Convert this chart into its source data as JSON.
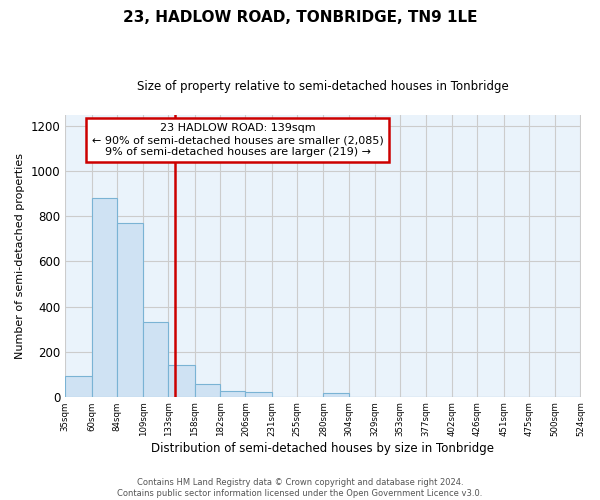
{
  "title": "23, HADLOW ROAD, TONBRIDGE, TN9 1LE",
  "subtitle": "Size of property relative to semi-detached houses in Tonbridge",
  "xlabel": "Distribution of semi-detached houses by size in Tonbridge",
  "ylabel": "Number of semi-detached properties",
  "bar_edges": [
    35,
    60,
    84,
    109,
    133,
    158,
    182,
    206,
    231,
    255,
    280,
    304,
    329,
    353,
    377,
    402,
    426,
    451,
    475,
    500,
    524
  ],
  "bar_heights": [
    90,
    880,
    770,
    330,
    140,
    55,
    25,
    20,
    0,
    0,
    15,
    0,
    0,
    0,
    0,
    0,
    0,
    0,
    0,
    0
  ],
  "bar_color": "#cfe2f3",
  "bar_edge_color": "#7ab3d4",
  "property_size": 139,
  "property_label": "23 HADLOW ROAD: 139sqm",
  "annotation_line1": "← 90% of semi-detached houses are smaller (2,085)",
  "annotation_line2": "9% of semi-detached houses are larger (219) →",
  "vline_color": "#cc0000",
  "annotation_box_edge": "#cc0000",
  "ylim": [
    0,
    1250
  ],
  "yticks": [
    0,
    200,
    400,
    600,
    800,
    1000,
    1200
  ],
  "tick_labels": [
    "35sqm",
    "60sqm",
    "84sqm",
    "109sqm",
    "133sqm",
    "158sqm",
    "182sqm",
    "206sqm",
    "231sqm",
    "255sqm",
    "280sqm",
    "304sqm",
    "329sqm",
    "353sqm",
    "377sqm",
    "402sqm",
    "426sqm",
    "451sqm",
    "475sqm",
    "500sqm",
    "524sqm"
  ],
  "footer_line1": "Contains HM Land Registry data © Crown copyright and database right 2024.",
  "footer_line2": "Contains public sector information licensed under the Open Government Licence v3.0.",
  "bg_color": "#ffffff",
  "grid_color": "#cccccc"
}
